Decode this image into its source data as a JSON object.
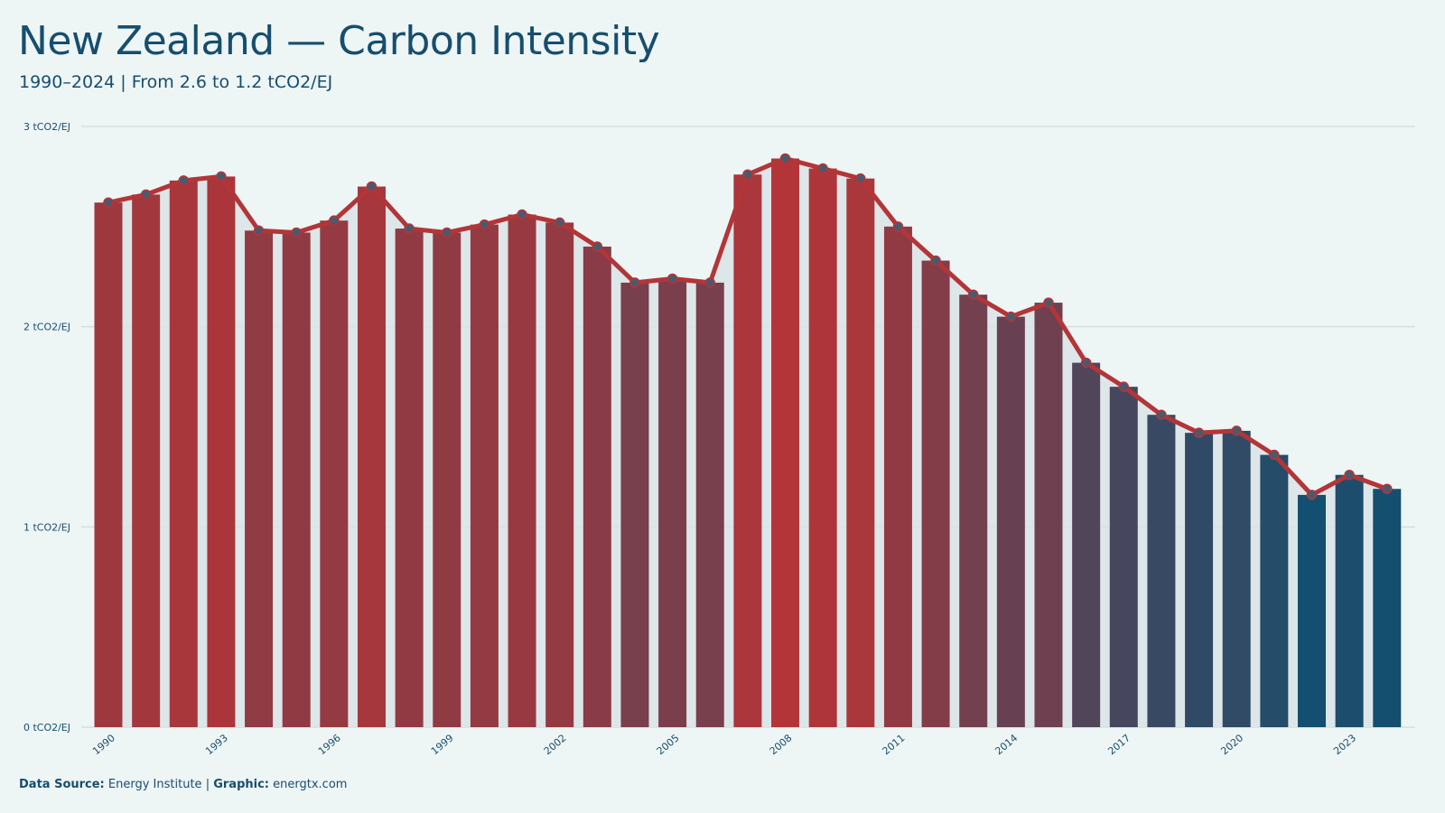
{
  "header": {
    "title": "New Zealand — Carbon Intensity",
    "subtitle": "1990–2024 | From 2.6 to 1.2 tCO2/EJ"
  },
  "footer": {
    "source_label": "Data Source:",
    "source_value": "Energy Institute",
    "separator": "|",
    "graphic_label": "Graphic:",
    "graphic_value": "energtx.com"
  },
  "colors": {
    "background": "#eef5f5",
    "text": "#164e6e",
    "bar_high": "#b33538",
    "bar_low": "#124f70",
    "line": "#b33538",
    "marker": "#4a5a6e",
    "area": "#d9e3e6",
    "grid": "#d5dfe1"
  },
  "chart_data": {
    "type": "bar",
    "x": [
      1990,
      1991,
      1992,
      1993,
      1994,
      1995,
      1996,
      1997,
      1998,
      1999,
      2000,
      2001,
      2002,
      2003,
      2004,
      2005,
      2006,
      2007,
      2008,
      2009,
      2010,
      2011,
      2012,
      2013,
      2014,
      2015,
      2016,
      2017,
      2018,
      2019,
      2020,
      2021,
      2022,
      2023,
      2024
    ],
    "values": [
      2.62,
      2.66,
      2.73,
      2.75,
      2.48,
      2.47,
      2.53,
      2.7,
      2.49,
      2.47,
      2.51,
      2.56,
      2.52,
      2.4,
      2.22,
      2.24,
      2.22,
      2.76,
      2.84,
      2.79,
      2.74,
      2.5,
      2.33,
      2.16,
      2.05,
      2.12,
      1.82,
      1.7,
      1.56,
      1.47,
      1.48,
      1.36,
      1.16,
      1.26,
      1.19
    ],
    "line_overlay": true,
    "x_tick_labels": [
      "1990",
      "1993",
      "1996",
      "1999",
      "2002",
      "2005",
      "2008",
      "2011",
      "2014",
      "2017",
      "2020",
      "2023"
    ],
    "y_tick_labels": [
      "0 tCO2/EJ",
      "1 tCO2/EJ",
      "2 tCO2/EJ",
      "3 tCO2/EJ"
    ],
    "y_ticks": [
      0,
      1,
      2,
      3
    ],
    "ylim": [
      0,
      3
    ],
    "unit": "tCO2/EJ",
    "grid": true,
    "legend": false
  }
}
